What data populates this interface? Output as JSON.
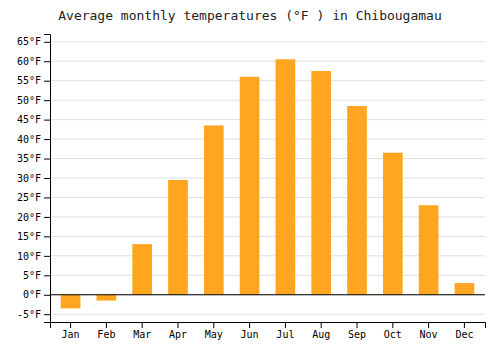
{
  "chart_data": {
    "type": "bar",
    "title": "Average monthly temperatures (°F ) in Chibougamau",
    "categories": [
      "Jan",
      "Feb",
      "Mar",
      "Apr",
      "May",
      "Jun",
      "Jul",
      "Aug",
      "Sep",
      "Oct",
      "Nov",
      "Dec"
    ],
    "values": [
      -3.5,
      -1.5,
      13,
      29.5,
      43.5,
      56,
      60.5,
      57.5,
      48.5,
      36.5,
      23,
      3
    ],
    "color": "#FFA520",
    "ylim": [
      -7,
      67
    ],
    "yticks": [
      {
        "value": -5,
        "label": "-5°F"
      },
      {
        "value": 0,
        "label": "0°F"
      },
      {
        "value": 5,
        "label": "5°F"
      },
      {
        "value": 10,
        "label": "10°F"
      },
      {
        "value": 15,
        "label": "15°F"
      },
      {
        "value": 20,
        "label": "20°F"
      },
      {
        "value": 25,
        "label": "25°F"
      },
      {
        "value": 30,
        "label": "30°F"
      },
      {
        "value": 35,
        "label": "35°F"
      },
      {
        "value": 40,
        "label": "40°F"
      },
      {
        "value": 45,
        "label": "45°F"
      },
      {
        "value": 50,
        "label": "50°F"
      },
      {
        "value": 55,
        "label": "55°F"
      },
      {
        "value": 60,
        "label": "60°F"
      },
      {
        "value": 65,
        "label": "65°F"
      }
    ],
    "grid": true
  }
}
